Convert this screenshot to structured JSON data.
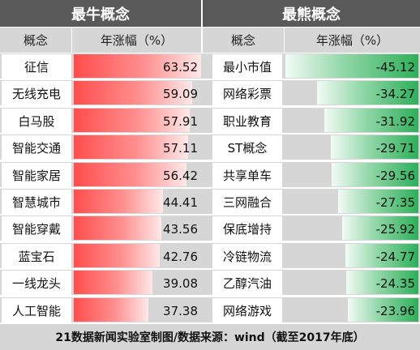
{
  "headers": {
    "left_title": "最牛概念",
    "right_title": "最熊概念",
    "col_concept": "概念",
    "col_change": "年涨幅（%）"
  },
  "footer": "21数据新闻实验室制图/数据来源：wind（截至2017年底）",
  "colors": {
    "header_bg": "#595959",
    "subheader_bg": "#d6d6d6",
    "bull_bar": "#ff5a5a",
    "bear_bar": "#2eaf5a"
  },
  "chart_data": [
    {
      "type": "bar",
      "title": "最牛概念",
      "categories": [
        "征信",
        "无线充电",
        "白马股",
        "智能交通",
        "智能家居",
        "智慧城市",
        "智能穿戴",
        "蓝宝石",
        "一线龙头",
        "人工智能"
      ],
      "values": [
        63.52,
        59.09,
        57.91,
        57.11,
        56.42,
        44.41,
        43.56,
        42.76,
        39.08,
        37.38
      ],
      "labels": [
        "63.52",
        "59.09",
        "57.91",
        "57.11",
        "56.42",
        "44.41",
        "43.56",
        "42.76",
        "39.08",
        "37.38"
      ]
    },
    {
      "type": "bar",
      "title": "最熊概念",
      "categories": [
        "最小市值",
        "网络彩票",
        "职业教育",
        "ST概念",
        "共享单车",
        "三网融合",
        "保底增持",
        "冷链物流",
        "乙醇汽油",
        "网络游戏"
      ],
      "values": [
        -45.12,
        -34.27,
        -31.92,
        -29.71,
        -29.56,
        -27.35,
        -25.92,
        -24.77,
        -24.35,
        -23.96
      ],
      "labels": [
        "-45.12",
        "-34.27",
        "-31.92",
        "-29.71",
        "-29.56",
        "-27.35",
        "-25.92",
        "-24.77",
        "-24.35",
        "-23.96"
      ]
    }
  ]
}
